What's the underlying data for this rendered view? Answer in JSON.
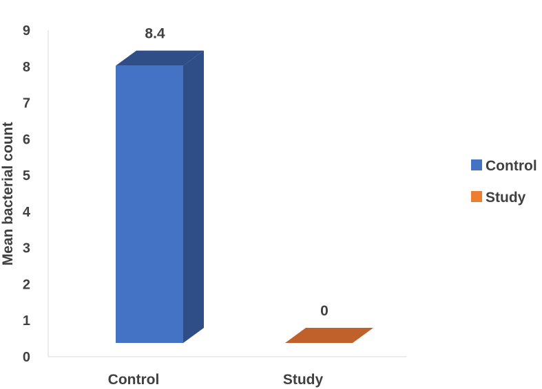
{
  "chart_data": {
    "type": "bar",
    "categories": [
      "Control",
      "Study"
    ],
    "series": [
      {
        "name": "Control",
        "values": [
          8.4,
          null
        ],
        "color": "#4472C4",
        "color_side": "#2F4D87",
        "color_top": "#2F4D87"
      },
      {
        "name": "Study",
        "values": [
          null,
          0
        ],
        "color": "#ED7D31",
        "color_side": "#B85A22",
        "color_top": "#C0602A"
      }
    ],
    "data_labels": [
      "8.4",
      "0"
    ],
    "ylabel": "Mean bacterial count",
    "xlabel": "",
    "title": "",
    "ylim": [
      0,
      9
    ],
    "yticks": [
      "0",
      "1",
      "2",
      "3",
      "4",
      "5",
      "6",
      "7",
      "8",
      "9"
    ],
    "grid": false,
    "legend": {
      "position": "right",
      "entries": [
        "Control",
        "Study"
      ]
    },
    "three_d": true
  }
}
